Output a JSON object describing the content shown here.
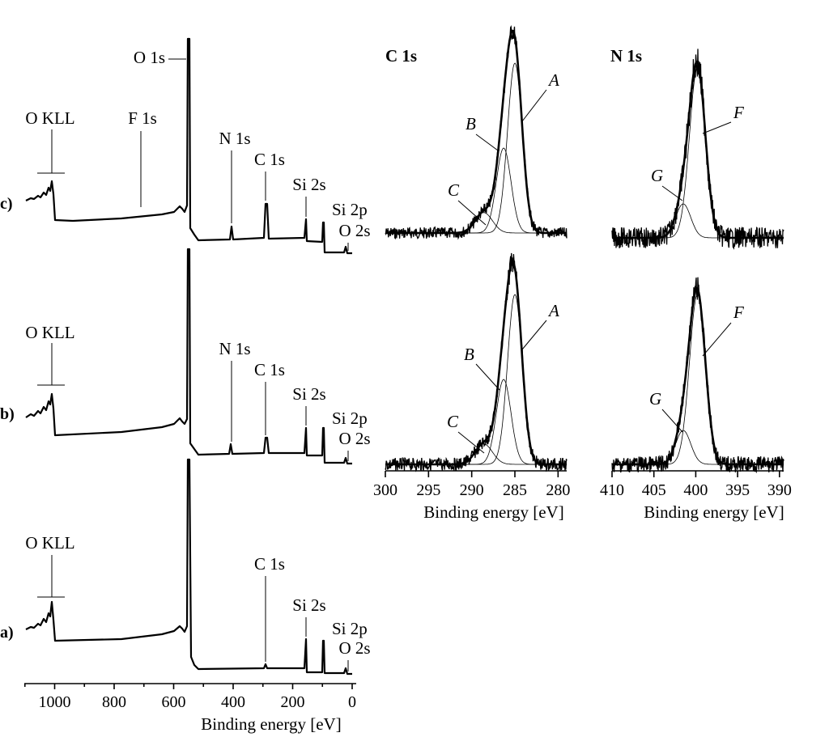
{
  "survey": {
    "xlabel": "Binding energy [eV]",
    "xticks": [
      1000,
      800,
      600,
      400,
      200,
      0
    ],
    "panels": [
      {
        "id": "c",
        "label": "c)",
        "peaks": [
          {
            "name": "O KLL",
            "be": 1005
          },
          {
            "name": "F 1s",
            "be": 689
          },
          {
            "name": "O 1s",
            "be": 532
          },
          {
            "name": "N 1s",
            "be": 400
          },
          {
            "name": "C 1s",
            "be": 285
          },
          {
            "name": "Si 2s",
            "be": 154
          },
          {
            "name": "Si 2p",
            "be": 103
          },
          {
            "name": "O 2s",
            "be": 24
          }
        ]
      },
      {
        "id": "b",
        "label": "b)",
        "peaks": [
          {
            "name": "O KLL",
            "be": 1005
          },
          {
            "name": "N 1s",
            "be": 400
          },
          {
            "name": "C 1s",
            "be": 285
          },
          {
            "name": "Si 2s",
            "be": 154
          },
          {
            "name": "Si 2p",
            "be": 103
          },
          {
            "name": "O 2s",
            "be": 24
          }
        ]
      },
      {
        "id": "a",
        "label": "a)",
        "peaks": [
          {
            "name": "O KLL",
            "be": 1005
          },
          {
            "name": "C 1s",
            "be": 285
          },
          {
            "name": "Si 2s",
            "be": 154
          },
          {
            "name": "Si 2p",
            "be": 103
          },
          {
            "name": "O 2s",
            "be": 24
          }
        ]
      }
    ]
  },
  "highres": [
    {
      "id": "c1s",
      "title": "C 1s",
      "xlabel": "Binding energy [eV]",
      "xticks": [
        300,
        295,
        290,
        285,
        280
      ],
      "xlim": [
        300,
        279
      ],
      "components": [
        {
          "name": "A",
          "center": 285.0
        },
        {
          "name": "B",
          "center": 286.3
        },
        {
          "name": "C",
          "center": 288.6
        }
      ]
    },
    {
      "id": "n1s",
      "title": "N 1s",
      "xlabel": "Binding energy [eV]",
      "xticks": [
        410,
        405,
        400,
        395,
        390
      ],
      "xlim": [
        410,
        389.5
      ],
      "components": [
        {
          "name": "F",
          "center": 399.8
        },
        {
          "name": "G",
          "center": 401.5
        }
      ]
    }
  ],
  "chart_data": [
    {
      "type": "line",
      "xlabel": "Binding energy [eV]",
      "xlim": [
        1100,
        0
      ],
      "series": [
        {
          "name": "c)",
          "peaks_eV": {
            "O KLL": 1005,
            "F 1s": 689,
            "O 1s": 532,
            "N 1s": 400,
            "C 1s": 285,
            "Si 2s": 154,
            "Si 2p": 103,
            "O 2s": 24
          }
        },
        {
          "name": "b)",
          "peaks_eV": {
            "O KLL": 1005,
            "O 1s": 532,
            "N 1s": 400,
            "C 1s": 285,
            "Si 2s": 154,
            "Si 2p": 103,
            "O 2s": 24
          }
        },
        {
          "name": "a)",
          "peaks_eV": {
            "O KLL": 1005,
            "O 1s": 532,
            "C 1s": 285,
            "Si 2s": 154,
            "Si 2p": 103,
            "O 2s": 24
          }
        }
      ]
    },
    {
      "type": "line",
      "title": "C 1s",
      "xlabel": "Binding energy [eV]",
      "xlim": [
        300,
        279
      ],
      "series": [
        {
          "name": "A",
          "center_eV": 285.0
        },
        {
          "name": "B",
          "center_eV": 286.3
        },
        {
          "name": "C",
          "center_eV": 288.6
        }
      ]
    },
    {
      "type": "line",
      "title": "N 1s",
      "xlabel": "Binding energy [eV]",
      "xlim": [
        410,
        389.5
      ],
      "series": [
        {
          "name": "F",
          "center_eV": 399.8
        },
        {
          "name": "G",
          "center_eV": 401.5
        }
      ]
    }
  ]
}
